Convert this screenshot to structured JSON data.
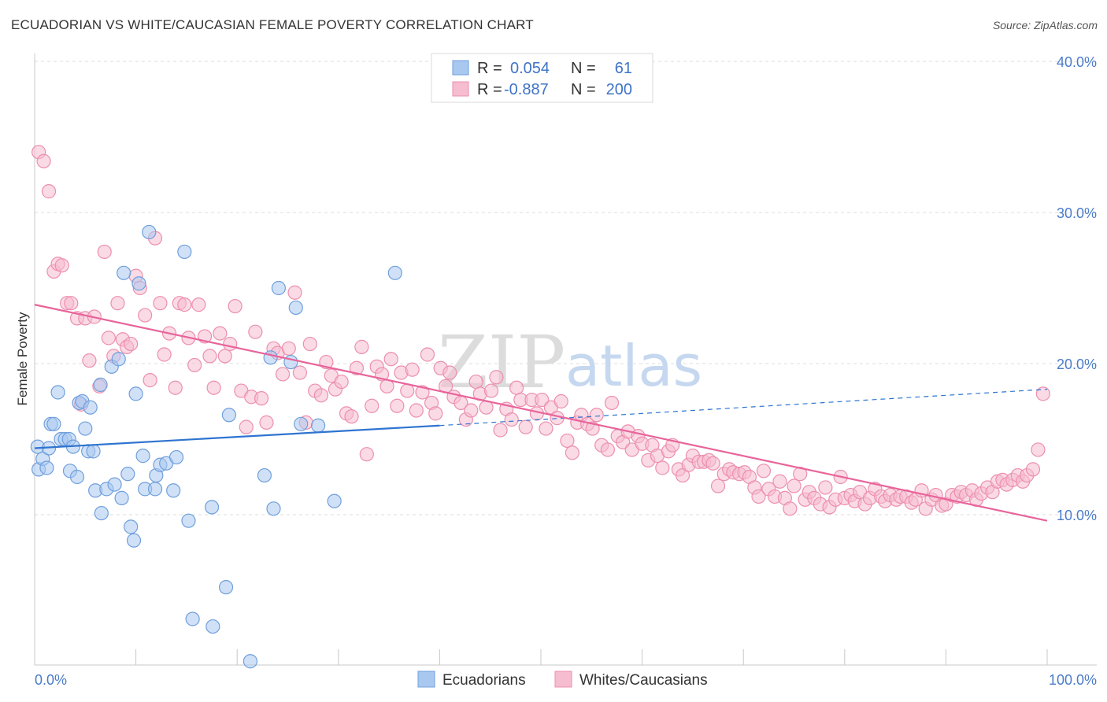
{
  "header": {
    "title": "ECUADORIAN VS WHITE/CAUCASIAN FEMALE POVERTY CORRELATION CHART",
    "source": "Source: ZipAtlas.com"
  },
  "watermark": {
    "part1": "ZIP",
    "part2": "atlas"
  },
  "legend_top": [
    {
      "r_label": "R =",
      "r_value": "0.054",
      "n_label": "N =",
      "n_value": "61"
    },
    {
      "r_label": "R =",
      "r_value": "-0.887",
      "n_label": "N =",
      "n_value": "200"
    }
  ],
  "legend_bottom": [
    "Ecuadorians",
    "Whites/Caucasians"
  ],
  "colors": {
    "blue_fill": "#a9c8f0",
    "blue_stroke": "#6f9fdc",
    "blue_line": "#2f74d0",
    "pink_fill": "#f6bcd0",
    "pink_stroke": "#ec8fae",
    "pink_line": "#e8649a",
    "tick_text": "#4a7cc9"
  },
  "chart_data": {
    "type": "scatter",
    "title": "ECUADORIAN VS WHITE/CAUCASIAN FEMALE POVERTY CORRELATION CHART",
    "xlabel": "",
    "ylabel": "Female Poverty",
    "xlim": [
      0,
      100
    ],
    "ylim": [
      0,
      40
    ],
    "x_tick_labels": [
      "0.0%",
      "100.0%"
    ],
    "y_ticks": [
      10,
      20,
      30,
      40
    ],
    "y_tick_labels": [
      "10.0%",
      "20.0%",
      "30.0%",
      "40.0%"
    ],
    "grid": "horizontal dashed",
    "legend_position": "top-center",
    "series": [
      {
        "name": "Ecuadorians",
        "r": 0.054,
        "n": 61,
        "trend": {
          "x": [
            0,
            40
          ],
          "y": [
            14.4,
            15.9
          ],
          "dashed_to": [
            100,
            18.3
          ]
        },
        "points": [
          [
            0.3,
            14.5
          ],
          [
            0.4,
            13.0
          ],
          [
            0.8,
            13.7
          ],
          [
            1.2,
            13.1
          ],
          [
            1.4,
            14.4
          ],
          [
            1.6,
            16.0
          ],
          [
            1.9,
            16.0
          ],
          [
            2.3,
            18.1
          ],
          [
            2.6,
            15.0
          ],
          [
            3.0,
            15.0
          ],
          [
            3.4,
            15.0
          ],
          [
            3.5,
            12.9
          ],
          [
            3.8,
            14.5
          ],
          [
            4.2,
            12.5
          ],
          [
            4.4,
            17.4
          ],
          [
            4.7,
            17.5
          ],
          [
            5.0,
            15.7
          ],
          [
            5.3,
            14.2
          ],
          [
            5.5,
            17.1
          ],
          [
            5.8,
            14.2
          ],
          [
            6.0,
            11.6
          ],
          [
            6.5,
            18.6
          ],
          [
            6.6,
            10.1
          ],
          [
            7.1,
            11.7
          ],
          [
            7.6,
            19.8
          ],
          [
            7.9,
            12.0
          ],
          [
            8.3,
            20.3
          ],
          [
            8.6,
            11.1
          ],
          [
            8.8,
            26.0
          ],
          [
            9.2,
            12.7
          ],
          [
            9.5,
            9.2
          ],
          [
            9.8,
            8.3
          ],
          [
            10.0,
            18.0
          ],
          [
            10.3,
            25.3
          ],
          [
            10.7,
            13.9
          ],
          [
            10.9,
            11.7
          ],
          [
            11.3,
            28.7
          ],
          [
            11.9,
            11.7
          ],
          [
            12.0,
            12.6
          ],
          [
            12.4,
            13.3
          ],
          [
            13.0,
            13.4
          ],
          [
            13.7,
            11.6
          ],
          [
            14.0,
            13.8
          ],
          [
            14.8,
            27.4
          ],
          [
            15.2,
            9.6
          ],
          [
            17.5,
            10.5
          ],
          [
            18.9,
            5.2
          ],
          [
            19.2,
            16.6
          ],
          [
            15.6,
            3.1
          ],
          [
            17.6,
            2.6
          ],
          [
            21.3,
            0.3
          ],
          [
            22.7,
            12.6
          ],
          [
            23.3,
            20.4
          ],
          [
            23.6,
            10.4
          ],
          [
            24.1,
            25.0
          ],
          [
            25.3,
            20.1
          ],
          [
            25.8,
            23.7
          ],
          [
            26.3,
            16.0
          ],
          [
            28.0,
            15.9
          ],
          [
            29.6,
            10.9
          ],
          [
            35.6,
            26.0
          ]
        ]
      },
      {
        "name": "Whites/Caucasians",
        "r": -0.887,
        "n": 200,
        "trend": {
          "x": [
            0,
            100
          ],
          "y": [
            23.9,
            9.6
          ]
        },
        "points": [
          [
            0.4,
            34.0
          ],
          [
            0.9,
            33.4
          ],
          [
            1.4,
            31.4
          ],
          [
            1.9,
            26.1
          ],
          [
            2.3,
            26.6
          ],
          [
            2.7,
            26.5
          ],
          [
            3.2,
            24.0
          ],
          [
            3.6,
            24.0
          ],
          [
            4.2,
            23.0
          ],
          [
            4.6,
            17.3
          ],
          [
            5.0,
            23.0
          ],
          [
            5.4,
            20.2
          ],
          [
            5.9,
            23.1
          ],
          [
            6.4,
            18.5
          ],
          [
            6.9,
            27.4
          ],
          [
            7.3,
            21.7
          ],
          [
            7.8,
            20.5
          ],
          [
            8.2,
            24.0
          ],
          [
            8.7,
            21.6
          ],
          [
            9.1,
            21.1
          ],
          [
            9.5,
            21.3
          ],
          [
            10.0,
            25.8
          ],
          [
            10.4,
            25.0
          ],
          [
            10.9,
            23.2
          ],
          [
            11.4,
            18.9
          ],
          [
            11.9,
            28.3
          ],
          [
            12.4,
            24.0
          ],
          [
            12.8,
            20.6
          ],
          [
            13.3,
            22.0
          ],
          [
            13.9,
            18.4
          ],
          [
            14.3,
            24.0
          ],
          [
            14.8,
            23.9
          ],
          [
            15.2,
            21.7
          ],
          [
            15.8,
            19.9
          ],
          [
            16.2,
            23.9
          ],
          [
            16.8,
            21.8
          ],
          [
            17.3,
            20.5
          ],
          [
            17.7,
            18.4
          ],
          [
            18.3,
            22.0
          ],
          [
            18.8,
            20.5
          ],
          [
            19.3,
            21.3
          ],
          [
            19.8,
            23.8
          ],
          [
            20.4,
            18.2
          ],
          [
            20.9,
            15.8
          ],
          [
            21.4,
            17.8
          ],
          [
            21.8,
            22.1
          ],
          [
            22.4,
            17.7
          ],
          [
            22.9,
            16.1
          ],
          [
            23.6,
            21.0
          ],
          [
            24.0,
            20.7
          ],
          [
            24.5,
            19.3
          ],
          [
            25.1,
            21.0
          ],
          [
            25.7,
            24.7
          ],
          [
            26.2,
            19.4
          ],
          [
            26.8,
            16.1
          ],
          [
            27.2,
            21.3
          ],
          [
            27.7,
            18.2
          ],
          [
            28.3,
            17.9
          ],
          [
            28.8,
            20.1
          ],
          [
            29.3,
            19.2
          ],
          [
            29.7,
            18.3
          ],
          [
            30.3,
            18.8
          ],
          [
            30.8,
            16.7
          ],
          [
            31.3,
            16.5
          ],
          [
            31.8,
            19.7
          ],
          [
            32.3,
            21.1
          ],
          [
            32.8,
            14.0
          ],
          [
            33.3,
            17.2
          ],
          [
            33.8,
            19.8
          ],
          [
            34.3,
            19.3
          ],
          [
            34.8,
            18.5
          ],
          [
            35.2,
            20.3
          ],
          [
            35.8,
            17.2
          ],
          [
            36.2,
            19.4
          ],
          [
            36.8,
            18.2
          ],
          [
            37.3,
            19.6
          ],
          [
            37.7,
            16.9
          ],
          [
            38.3,
            18.1
          ],
          [
            38.8,
            20.6
          ],
          [
            39.2,
            17.4
          ],
          [
            39.6,
            16.7
          ],
          [
            40.1,
            19.7
          ],
          [
            40.6,
            18.5
          ],
          [
            41.0,
            19.4
          ],
          [
            41.4,
            17.8
          ],
          [
            42.1,
            17.4
          ],
          [
            42.6,
            16.3
          ],
          [
            43.1,
            16.9
          ],
          [
            43.6,
            18.8
          ],
          [
            44.0,
            18.0
          ],
          [
            44.6,
            17.1
          ],
          [
            45.1,
            18.2
          ],
          [
            45.6,
            19.1
          ],
          [
            46.0,
            15.6
          ],
          [
            46.6,
            17.0
          ],
          [
            47.1,
            16.3
          ],
          [
            47.6,
            18.4
          ],
          [
            48.0,
            17.6
          ],
          [
            48.5,
            15.8
          ],
          [
            49.1,
            17.6
          ],
          [
            49.6,
            16.7
          ],
          [
            50.1,
            17.6
          ],
          [
            50.5,
            15.7
          ],
          [
            51.0,
            17.1
          ],
          [
            51.6,
            16.4
          ],
          [
            52.0,
            17.5
          ],
          [
            52.6,
            14.9
          ],
          [
            53.1,
            14.1
          ],
          [
            53.6,
            16.1
          ],
          [
            54.0,
            16.6
          ],
          [
            54.6,
            16.0
          ],
          [
            55.1,
            15.7
          ],
          [
            55.5,
            16.6
          ],
          [
            56.0,
            14.6
          ],
          [
            56.6,
            14.3
          ],
          [
            57.0,
            17.4
          ],
          [
            57.6,
            15.2
          ],
          [
            58.1,
            14.8
          ],
          [
            58.6,
            15.5
          ],
          [
            59.0,
            14.3
          ],
          [
            59.6,
            15.2
          ],
          [
            60.0,
            14.7
          ],
          [
            60.6,
            13.6
          ],
          [
            61.0,
            14.6
          ],
          [
            61.5,
            13.9
          ],
          [
            62.0,
            13.1
          ],
          [
            62.6,
            14.2
          ],
          [
            63.0,
            14.6
          ],
          [
            63.6,
            13.0
          ],
          [
            64.0,
            12.6
          ],
          [
            64.6,
            13.3
          ],
          [
            65.0,
            13.9
          ],
          [
            65.6,
            13.5
          ],
          [
            66.1,
            13.5
          ],
          [
            66.6,
            13.6
          ],
          [
            67.0,
            13.4
          ],
          [
            67.5,
            11.9
          ],
          [
            68.1,
            12.7
          ],
          [
            68.6,
            13.0
          ],
          [
            69.0,
            12.8
          ],
          [
            69.6,
            12.7
          ],
          [
            70.1,
            12.8
          ],
          [
            70.6,
            12.5
          ],
          [
            71.1,
            11.8
          ],
          [
            71.5,
            11.2
          ],
          [
            72.0,
            12.9
          ],
          [
            72.5,
            11.7
          ],
          [
            73.1,
            11.2
          ],
          [
            73.6,
            12.2
          ],
          [
            74.1,
            11.1
          ],
          [
            74.6,
            10.4
          ],
          [
            75.0,
            11.9
          ],
          [
            75.6,
            12.7
          ],
          [
            76.1,
            11.0
          ],
          [
            76.5,
            11.5
          ],
          [
            77.0,
            11.1
          ],
          [
            77.6,
            10.7
          ],
          [
            78.1,
            11.8
          ],
          [
            78.5,
            10.5
          ],
          [
            79.1,
            11.0
          ],
          [
            79.6,
            12.5
          ],
          [
            80.0,
            11.1
          ],
          [
            80.6,
            11.3
          ],
          [
            81.0,
            10.9
          ],
          [
            81.5,
            11.5
          ],
          [
            82.0,
            10.7
          ],
          [
            82.5,
            11.1
          ],
          [
            83.0,
            11.7
          ],
          [
            83.6,
            11.2
          ],
          [
            84.0,
            10.9
          ],
          [
            84.5,
            11.3
          ],
          [
            85.1,
            11.0
          ],
          [
            85.5,
            11.2
          ],
          [
            86.1,
            11.2
          ],
          [
            86.6,
            10.8
          ],
          [
            87.0,
            11.0
          ],
          [
            87.6,
            11.6
          ],
          [
            88.0,
            10.4
          ],
          [
            88.6,
            11.0
          ],
          [
            89.0,
            11.3
          ],
          [
            89.6,
            10.6
          ],
          [
            90.0,
            10.7
          ],
          [
            90.6,
            11.3
          ],
          [
            91.1,
            11.2
          ],
          [
            91.5,
            11.5
          ],
          [
            92.0,
            11.3
          ],
          [
            92.6,
            11.6
          ],
          [
            93.0,
            11.0
          ],
          [
            93.5,
            11.4
          ],
          [
            94.1,
            11.8
          ],
          [
            94.6,
            11.5
          ],
          [
            95.1,
            12.2
          ],
          [
            95.6,
            12.3
          ],
          [
            96.0,
            12.0
          ],
          [
            96.6,
            12.3
          ],
          [
            97.1,
            12.6
          ],
          [
            97.6,
            12.2
          ],
          [
            98.0,
            12.6
          ],
          [
            98.6,
            13.0
          ],
          [
            99.1,
            14.3
          ],
          [
            99.6,
            18.0
          ]
        ]
      }
    ]
  }
}
